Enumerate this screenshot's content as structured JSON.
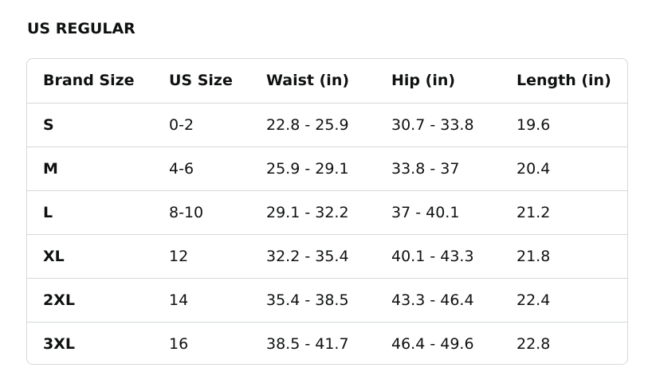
{
  "section": {
    "title": "US REGULAR"
  },
  "table": {
    "headers": [
      "Brand Size",
      "US Size",
      "Waist (in)",
      "Hip (in)",
      "Length (in)"
    ],
    "rows": [
      [
        "S",
        "0-2",
        "22.8 - 25.9",
        "30.7 - 33.8",
        "19.6"
      ],
      [
        "M",
        "4-6",
        "25.9 - 29.1",
        "33.8 - 37",
        "20.4"
      ],
      [
        "L",
        "8-10",
        "29.1 - 32.2",
        "37 - 40.1",
        "21.2"
      ],
      [
        "XL",
        "12",
        "32.2 - 35.4",
        "40.1 - 43.3",
        "21.8"
      ],
      [
        "2XL",
        "14",
        "35.4 - 38.5",
        "43.3 - 46.4",
        "22.4"
      ],
      [
        "3XL",
        "16",
        "38.5 - 41.7",
        "46.4 - 49.6",
        "22.8"
      ]
    ]
  },
  "colors": {
    "text": "#0f1111",
    "border": "#d5d9d9",
    "background": "#ffffff"
  }
}
